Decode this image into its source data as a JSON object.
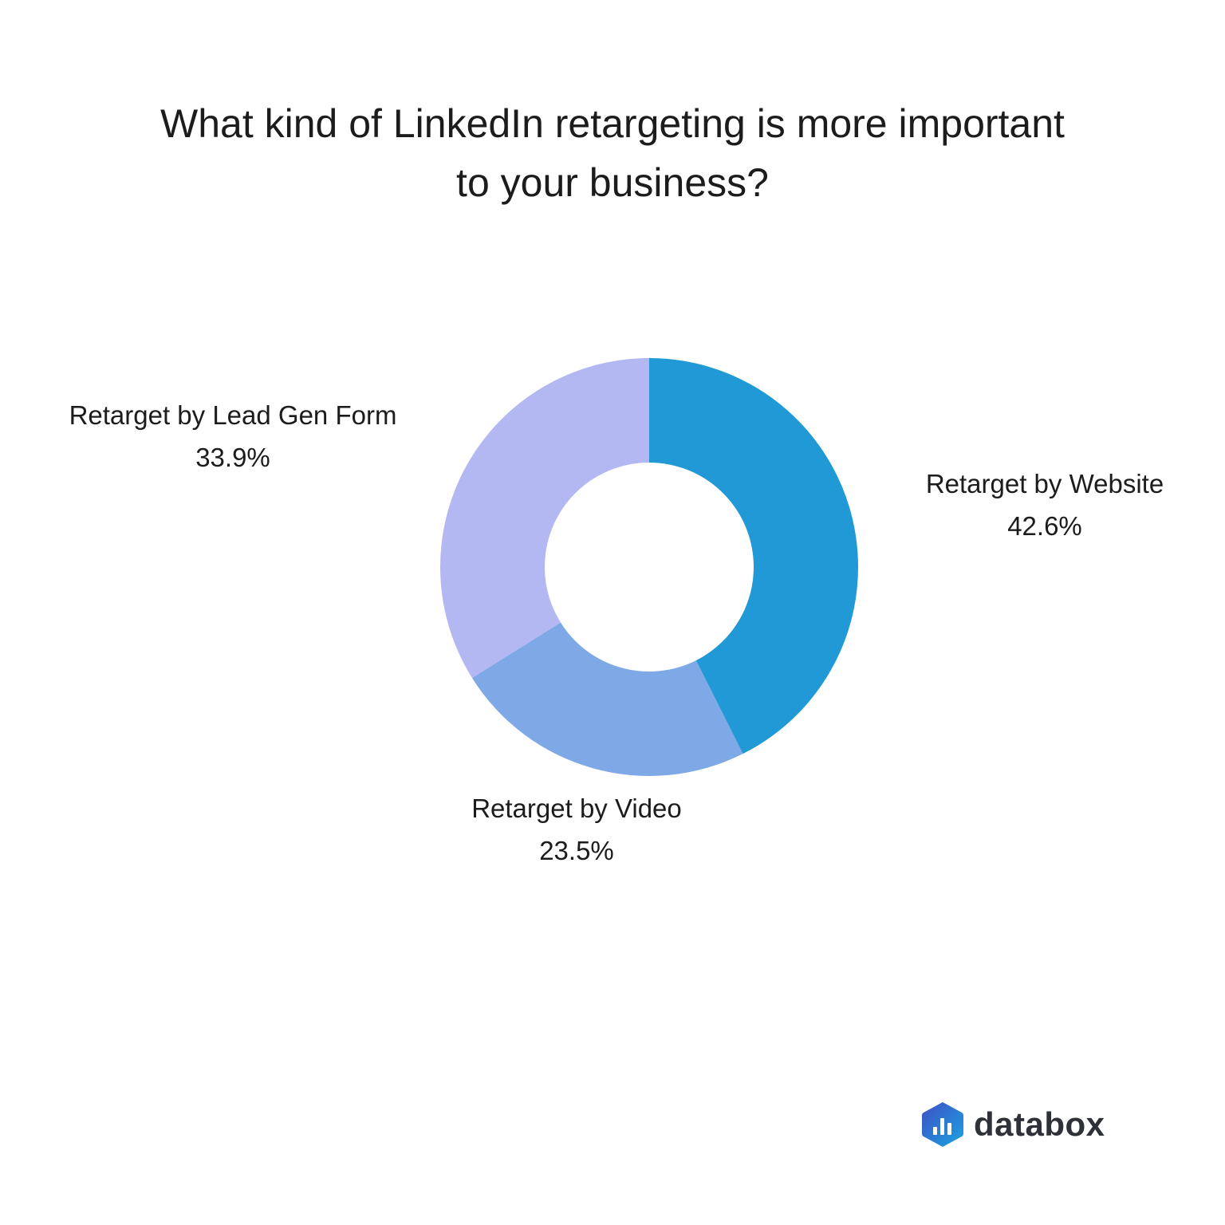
{
  "title": {
    "line1": "What kind of LinkedIn retargeting is more important",
    "line2": "to your business?"
  },
  "chart_data": {
    "type": "pie",
    "subtype": "donut",
    "title": "What kind of LinkedIn retargeting is more important to your business?",
    "categories": [
      "Retarget by Website",
      "Retarget by Video",
      "Retarget by Lead Gen Form"
    ],
    "values": [
      42.6,
      23.5,
      33.9
    ],
    "unit": "%",
    "colors": [
      "#2199d6",
      "#7fa9e6",
      "#b4b8f2"
    ],
    "start_angle_deg": 0,
    "direction": "clockwise",
    "legend": "none (direct labels)"
  },
  "labels": {
    "website": {
      "name": "Retarget by Website",
      "value": "42.6%"
    },
    "video": {
      "name": "Retarget by Video",
      "value": "23.5%"
    },
    "leadgen": {
      "name": "Retarget by Lead Gen Form",
      "value": "33.9%"
    }
  },
  "brand": {
    "name": "databox",
    "icon": "databox-hexagon-logo-icon"
  }
}
